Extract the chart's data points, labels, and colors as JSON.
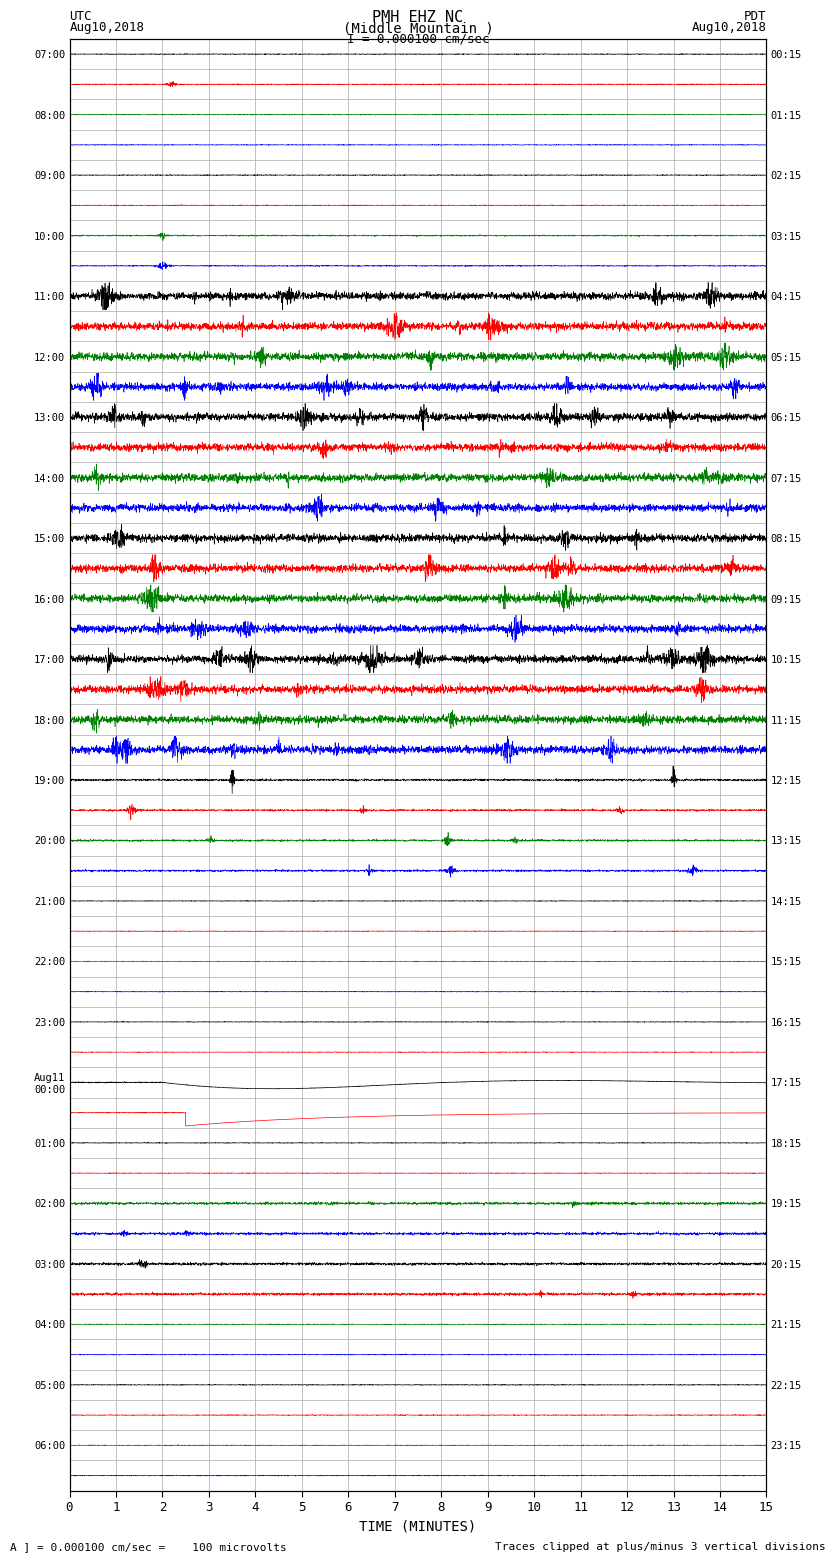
{
  "title_line1": "PMH EHZ NC",
  "title_line2": "(Middle Mountain )",
  "title_line3": "I = 0.000100 cm/sec",
  "left_header_line1": "UTC",
  "left_header_line2": "Aug10,2018",
  "right_header_line1": "PDT",
  "right_header_line2": "Aug10,2018",
  "xlabel": "TIME (MINUTES)",
  "footer_left": "A ] = 0.000100 cm/sec =    100 microvolts",
  "footer_right": "Traces clipped at plus/minus 3 vertical divisions",
  "xlim": [
    0,
    15
  ],
  "xticks": [
    0,
    1,
    2,
    3,
    4,
    5,
    6,
    7,
    8,
    9,
    10,
    11,
    12,
    13,
    14,
    15
  ],
  "bg_color": "#ffffff",
  "grid_color": "#aaaaaa",
  "trace_colors_cycle": [
    "black",
    "red",
    "green",
    "blue"
  ],
  "num_rows": 48,
  "left_labels": [
    "07:00",
    "",
    "08:00",
    "",
    "09:00",
    "",
    "10:00",
    "",
    "11:00",
    "",
    "12:00",
    "",
    "13:00",
    "",
    "14:00",
    "",
    "15:00",
    "",
    "16:00",
    "",
    "17:00",
    "",
    "18:00",
    "",
    "19:00",
    "",
    "20:00",
    "",
    "21:00",
    "",
    "22:00",
    "",
    "23:00",
    "",
    "Aug11\n00:00",
    "",
    "01:00",
    "",
    "02:00",
    "",
    "03:00",
    "",
    "04:00",
    "",
    "05:00",
    "",
    "06:00",
    ""
  ],
  "right_labels": [
    "00:15",
    "",
    "01:15",
    "",
    "02:15",
    "",
    "03:15",
    "",
    "04:15",
    "",
    "05:15",
    "",
    "06:15",
    "",
    "07:15",
    "",
    "08:15",
    "",
    "09:15",
    "",
    "10:15",
    "",
    "11:15",
    "",
    "12:15",
    "",
    "13:15",
    "",
    "14:15",
    "",
    "15:15",
    "",
    "16:15",
    "",
    "17:15",
    "",
    "18:15",
    "",
    "19:15",
    "",
    "20:15",
    "",
    "21:15",
    "",
    "22:15",
    "",
    "23:15",
    ""
  ]
}
